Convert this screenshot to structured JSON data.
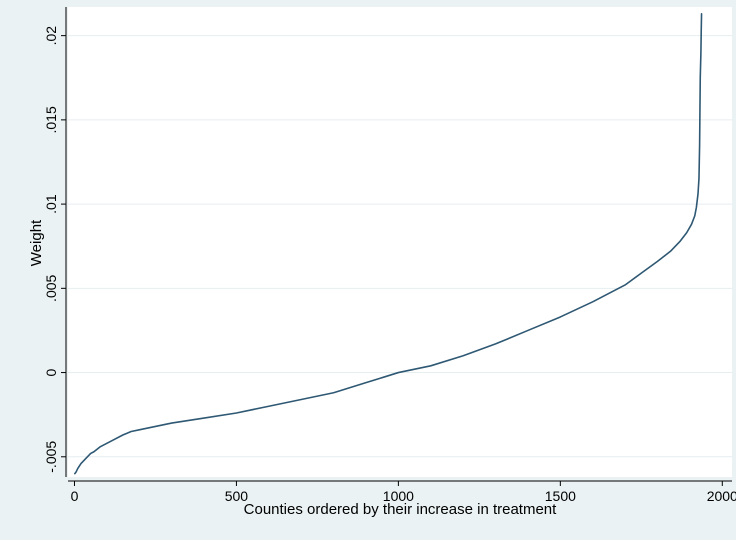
{
  "chart_data": {
    "type": "line",
    "title": "",
    "xlabel": "Counties ordered by their increase in treatment",
    "ylabel": "Weight",
    "xlim": [
      -20,
      2030
    ],
    "ylim": [
      -0.0062,
      0.0217
    ],
    "x_ticks": [
      {
        "value": 0,
        "label": "0"
      },
      {
        "value": 500,
        "label": "500"
      },
      {
        "value": 1000,
        "label": "1000"
      },
      {
        "value": 1500,
        "label": "1500"
      },
      {
        "value": 2000,
        "label": "2000"
      }
    ],
    "y_ticks": [
      {
        "value": -0.005,
        "label": "-.005"
      },
      {
        "value": 0,
        "label": "0"
      },
      {
        "value": 0.005,
        "label": ".005"
      },
      {
        "value": 0.01,
        "label": ".01"
      },
      {
        "value": 0.015,
        "label": ".015"
      },
      {
        "value": 0.02,
        "label": ".02"
      }
    ],
    "grid": "horizontal",
    "colors": {
      "page_background": "#eaf2f3",
      "plot_background": "#ffffff",
      "line": "#2e5873",
      "grid": "#e6eef0"
    },
    "series": [
      {
        "x": [
          1,
          5,
          10,
          20,
          30,
          40,
          50,
          60,
          80,
          100,
          120,
          150,
          175,
          200,
          250,
          300,
          400,
          500,
          600,
          700,
          800,
          900,
          1000,
          1100,
          1200,
          1300,
          1400,
          1500,
          1600,
          1700,
          1750,
          1800,
          1840,
          1870,
          1890,
          1905,
          1915,
          1920,
          1925,
          1928,
          1930,
          1931,
          1932,
          1934,
          1935,
          1936
        ],
        "y": [
          -0.006,
          -0.0059,
          -0.0057,
          -0.0054,
          -0.0052,
          -0.005,
          -0.0048,
          -0.0047,
          -0.0044,
          -0.0042,
          -0.004,
          -0.0037,
          -0.0035,
          -0.0034,
          -0.0032,
          -0.003,
          -0.0027,
          -0.0024,
          -0.002,
          -0.0016,
          -0.0012,
          -0.0006,
          0.0,
          0.0004,
          0.001,
          0.0017,
          0.0025,
          0.0033,
          0.0042,
          0.0052,
          0.0059,
          0.0066,
          0.0072,
          0.0078,
          0.0083,
          0.0088,
          0.0093,
          0.0098,
          0.0106,
          0.0115,
          0.0135,
          0.0155,
          0.0175,
          0.019,
          0.0203,
          0.0213
        ]
      }
    ]
  }
}
